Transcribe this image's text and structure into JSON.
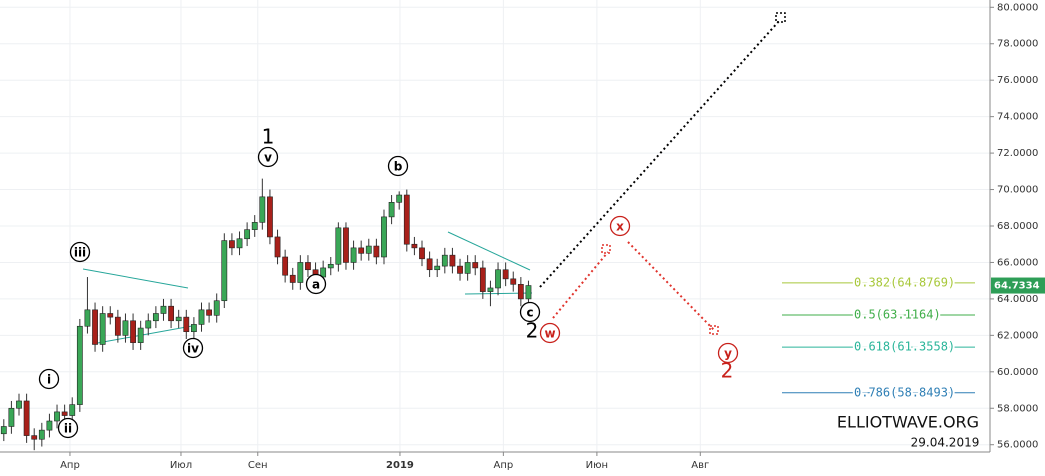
{
  "chart_data": {
    "type": "candlestick",
    "categories": [
      null,
      null,
      null,
      null,
      null,
      null,
      null,
      null,
      null,
      null,
      null,
      null,
      null,
      null,
      null,
      null,
      null,
      null,
      null,
      null,
      null,
      null,
      null,
      null,
      null,
      null,
      null,
      null,
      null,
      null,
      null,
      null,
      null,
      null,
      null,
      null,
      null,
      null,
      null,
      null,
      null,
      null,
      null,
      null,
      null,
      null,
      null,
      null,
      null,
      null,
      null,
      null,
      null,
      null,
      null,
      null,
      null,
      null,
      null,
      null,
      null,
      null,
      null,
      null,
      null,
      null,
      null,
      null,
      null,
      null
    ],
    "open": [
      56.6,
      57.0,
      58.0,
      58.4,
      56.5,
      56.3,
      56.8,
      57.3,
      57.8,
      57.6,
      58.2,
      62.5,
      63.4,
      61.5,
      63.2,
      63.0,
      62.0,
      62.8,
      61.6,
      62.4,
      62.8,
      63.2,
      63.6,
      62.8,
      63.0,
      62.2,
      62.6,
      63.4,
      63.1,
      63.9,
      67.2,
      66.8,
      67.3,
      67.8,
      68.2,
      69.6,
      67.4,
      66.3,
      65.3,
      64.9,
      66.0,
      65.6,
      65.2,
      65.7,
      65.9,
      67.9,
      66.0,
      66.8,
      66.5,
      66.9,
      66.3,
      68.5,
      69.3,
      69.7,
      67.0,
      66.8,
      66.2,
      65.6,
      65.8,
      66.4,
      65.8,
      65.4,
      66.0,
      65.7,
      64.4,
      64.6,
      65.6,
      65.1,
      64.8,
      64.0
    ],
    "high": [
      57.4,
      58.4,
      58.8,
      58.8,
      56.9,
      57.2,
      57.7,
      58.2,
      58.2,
      58.6,
      62.9,
      65.2,
      63.8,
      63.6,
      63.6,
      63.4,
      63.2,
      63.2,
      62.8,
      63.2,
      63.6,
      64.0,
      64.0,
      63.4,
      63.4,
      63.0,
      63.8,
      63.8,
      64.3,
      67.6,
      67.6,
      67.7,
      68.2,
      68.6,
      70.6,
      70.0,
      67.8,
      66.7,
      65.7,
      66.4,
      66.4,
      66.0,
      66.1,
      66.3,
      68.2,
      68.2,
      67.2,
      67.2,
      67.3,
      67.3,
      68.9,
      69.7,
      69.9,
      70.0,
      67.4,
      67.2,
      66.6,
      66.2,
      66.8,
      66.8,
      66.2,
      66.4,
      66.4,
      66.1,
      65.0,
      66.0,
      66.0,
      65.5,
      65.2,
      65.0
    ],
    "low": [
      56.2,
      56.6,
      57.6,
      56.1,
      55.7,
      55.9,
      56.4,
      56.9,
      57.2,
      57.2,
      57.8,
      62.1,
      61.1,
      61.1,
      62.6,
      61.6,
      61.6,
      61.2,
      61.2,
      62.0,
      62.4,
      62.8,
      62.4,
      62.4,
      61.8,
      61.8,
      62.2,
      62.7,
      62.7,
      63.5,
      66.4,
      66.4,
      66.9,
      67.4,
      67.8,
      67.0,
      65.9,
      64.9,
      64.5,
      64.5,
      65.2,
      64.8,
      64.8,
      65.3,
      65.5,
      65.6,
      65.6,
      66.1,
      66.1,
      65.9,
      65.9,
      68.1,
      68.9,
      66.6,
      66.4,
      65.8,
      65.2,
      65.2,
      65.4,
      65.4,
      65.0,
      65.0,
      65.3,
      64.0,
      63.6,
      64.2,
      64.7,
      64.4,
      63.6,
      63.6
    ],
    "close": [
      57.0,
      58.0,
      58.4,
      56.5,
      56.3,
      56.8,
      57.3,
      57.8,
      57.6,
      58.2,
      62.5,
      63.4,
      61.5,
      63.2,
      63.0,
      62.0,
      62.8,
      61.6,
      62.4,
      62.8,
      63.2,
      63.6,
      62.8,
      63.0,
      62.2,
      62.6,
      63.4,
      63.1,
      63.9,
      67.2,
      66.8,
      67.3,
      67.8,
      68.2,
      69.6,
      67.4,
      66.3,
      65.3,
      64.9,
      66.0,
      65.6,
      65.2,
      65.7,
      65.9,
      67.9,
      66.0,
      66.8,
      66.5,
      66.9,
      66.3,
      68.5,
      69.3,
      69.7,
      67.0,
      66.8,
      66.2,
      65.6,
      65.8,
      66.4,
      65.8,
      65.4,
      66.0,
      65.7,
      64.4,
      64.6,
      65.6,
      65.1,
      64.8,
      64.0,
      64.7334
    ],
    "up_color": "#3aa757",
    "down_color": "#a8201a",
    "xlim": [
      -0.5,
      129.7
    ],
    "xticks": [
      {
        "value": 8.7,
        "label": "Апр"
      },
      {
        "value": 23.3,
        "label": "Июл"
      },
      {
        "value": 33.4,
        "label": "Сен"
      },
      {
        "value": 52.1,
        "label": "2019"
      },
      {
        "value": 65.7,
        "label": "Апр"
      },
      {
        "value": 78.0,
        "label": "Июн"
      },
      {
        "value": 91.6,
        "label": "Авг"
      }
    ],
    "ylim": [
      55.6,
      80.4
    ],
    "yticks": [
      {
        "value": 56,
        "label": "56.0000"
      },
      {
        "value": 58,
        "label": "58.0000"
      },
      {
        "value": 60,
        "label": "60.0000"
      },
      {
        "value": 62,
        "label": "62.0000"
      },
      {
        "value": 64,
        "label": "64.0000"
      },
      {
        "value": 66,
        "label": "66.0000"
      },
      {
        "value": 68,
        "label": "68.0000"
      },
      {
        "value": 70,
        "label": "70.0000"
      },
      {
        "value": 72,
        "label": "72.0000"
      },
      {
        "value": 74,
        "label": "74.0000"
      },
      {
        "value": 76,
        "label": "76.0000"
      },
      {
        "value": 78,
        "label": "78.0000"
      },
      {
        "value": 80,
        "label": "80.0000"
      }
    ],
    "grid": true,
    "last_price": 64.7334,
    "fib_levels": [
      {
        "label": "0.382(64.8769)",
        "value": 64.8769,
        "color": "#a8c83a"
      },
      {
        "label": "0.5(63.1164)",
        "value": 63.1164,
        "color": "#3fae49"
      },
      {
        "label": "0.618(61.3558)",
        "value": 61.3558,
        "color": "#2ab59a"
      },
      {
        "label": "0.786(58.8493)",
        "value": 58.8493,
        "color": "#2f7fb5"
      }
    ],
    "wave_labels": [
      "i",
      "ii",
      "iii",
      "iv",
      "v",
      "1",
      "a",
      "b",
      "c",
      "2",
      "w",
      "x",
      "y",
      "2"
    ],
    "watermark": "ELLIOTWAVE.ORG",
    "date": "29.04.2019"
  }
}
